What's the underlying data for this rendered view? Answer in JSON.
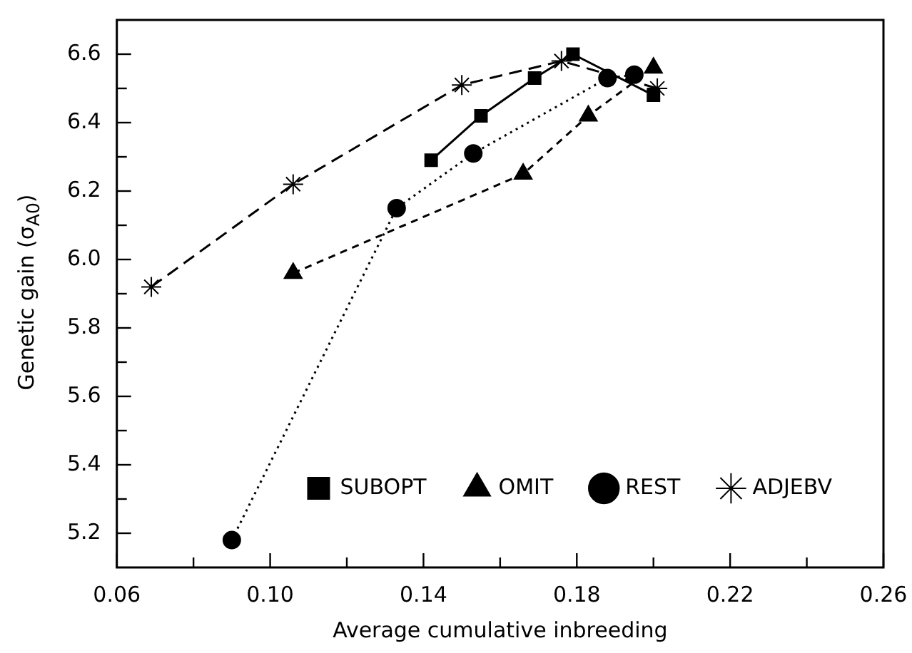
{
  "chart_data": {
    "type": "line",
    "xlabel": "Average cumulative inbreeding",
    "ylabel": "Genetic gain (σ$_{A0}$)",
    "xlim": [
      0.06,
      0.26
    ],
    "xticks": [
      {
        "value": 0.06,
        "label": "0.06"
      },
      {
        "value": 0.08,
        "label": null
      },
      {
        "value": 0.1,
        "label": "0.10"
      },
      {
        "value": 0.12,
        "label": null
      },
      {
        "value": 0.14,
        "label": "0.14"
      },
      {
        "value": 0.16,
        "label": null
      },
      {
        "value": 0.18,
        "label": "0.18"
      },
      {
        "value": 0.2,
        "label": null
      },
      {
        "value": 0.22,
        "label": "0.22"
      },
      {
        "value": 0.24,
        "label": null
      },
      {
        "value": 0.26,
        "label": "0.26"
      }
    ],
    "ylim": [
      5.1,
      6.7
    ],
    "yticks": [
      {
        "value": 5.2,
        "label": "5.2"
      },
      {
        "value": 5.3,
        "label": null
      },
      {
        "value": 5.4,
        "label": "5.4"
      },
      {
        "value": 5.5,
        "label": null
      },
      {
        "value": 5.6,
        "label": "5.6"
      },
      {
        "value": 5.7,
        "label": null
      },
      {
        "value": 5.8,
        "label": "5.8"
      },
      {
        "value": 5.9,
        "label": null
      },
      {
        "value": 6.0,
        "label": "6.0"
      },
      {
        "value": 6.1,
        "label": null
      },
      {
        "value": 6.2,
        "label": "6.2"
      },
      {
        "value": 6.3,
        "label": null
      },
      {
        "value": 6.4,
        "label": "6.4"
      },
      {
        "value": 6.5,
        "label": null
      },
      {
        "value": 6.6,
        "label": "6.6"
      }
    ],
    "grid": false,
    "legend": "bottom right",
    "series": [
      {
        "name": "SUBOPT",
        "color": "#000000",
        "marker": "square",
        "line_style": "solid",
        "x": [
          0.142,
          0.155,
          0.169,
          0.179,
          0.2
        ],
        "values": [
          6.29,
          6.42,
          6.53,
          6.6,
          6.48
        ]
      },
      {
        "name": "OMIT",
        "color": "#000000",
        "marker": "triangle",
        "line_style": "dashed",
        "x": [
          0.106,
          0.166,
          0.183,
          0.2
        ],
        "values": [
          5.96,
          6.25,
          6.42,
          6.56
        ]
      },
      {
        "name": "REST",
        "color": "#000000",
        "marker": "circle",
        "line_style": "dotted",
        "x": [
          0.09,
          0.133,
          0.153,
          0.188,
          0.195
        ],
        "values": [
          5.18,
          6.15,
          6.31,
          6.53,
          6.54
        ]
      },
      {
        "name": "ADJEBV",
        "color": "#000000",
        "marker": "cross",
        "line_style": "dashed",
        "x": [
          0.069,
          0.106,
          0.15,
          0.176,
          0.201
        ],
        "values": [
          5.92,
          6.22,
          6.51,
          6.58,
          6.5
        ]
      }
    ]
  }
}
